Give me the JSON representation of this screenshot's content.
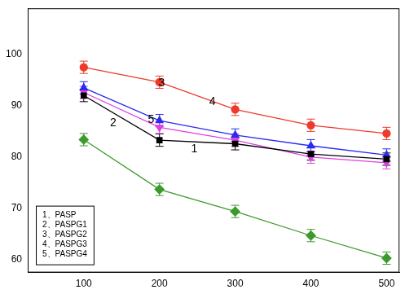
{
  "chart_data": {
    "type": "line",
    "x": [
      100,
      200,
      300,
      400,
      500
    ],
    "xlim": [
      26,
      517
    ],
    "xticks": [
      100,
      200,
      300,
      400,
      500
    ],
    "ylim": [
      57.5,
      109
    ],
    "yticks": [
      60,
      70,
      80,
      90,
      100
    ],
    "grid": false,
    "legend": "lower left",
    "series": [
      {
        "name": "1、PASP",
        "color": "#3c9a2c",
        "marker": "diamond",
        "values": [
          83.4,
          73.7,
          69.4,
          64.7,
          60.3
        ],
        "errors": [
          1.2,
          1.2,
          1.2,
          1.2,
          1.2
        ]
      },
      {
        "name": "2、PASPG1",
        "color": "#000000",
        "marker": "square",
        "values": [
          92.0,
          83.3,
          82.6,
          80.6,
          79.6
        ],
        "errors": [
          1.2,
          1.2,
          1.2,
          1.2,
          1.2
        ]
      },
      {
        "name": "3、PASPG2",
        "color": "#ee3a2a",
        "marker": "circle",
        "values": [
          97.5,
          94.6,
          89.3,
          86.2,
          84.6
        ],
        "errors": [
          1.2,
          1.2,
          1.2,
          1.2,
          1.2
        ]
      },
      {
        "name": "4、PASPG3",
        "color": "#2a2af0",
        "marker": "triangle",
        "values": [
          93.5,
          87.1,
          84.3,
          82.2,
          80.4
        ],
        "errors": [
          1.2,
          1.2,
          1.2,
          1.2,
          1.2
        ]
      },
      {
        "name": "5、PASPG4",
        "color": "#e040e0",
        "marker": "triangle_down",
        "values": [
          92.6,
          85.8,
          83.3,
          80.0,
          78.9
        ],
        "errors": [
          1.2,
          1.2,
          1.2,
          1.2,
          1.2
        ]
      }
    ],
    "annotations": [
      {
        "text": "1",
        "x": 246,
        "y": 81.5
      },
      {
        "text": "2",
        "x": 139,
        "y": 86.6
      },
      {
        "text": "3",
        "x": 203,
        "y": 94.4
      },
      {
        "text": "4",
        "x": 270,
        "y": 90.8
      },
      {
        "text": "5",
        "x": 189,
        "y": 87.3
      }
    ]
  }
}
